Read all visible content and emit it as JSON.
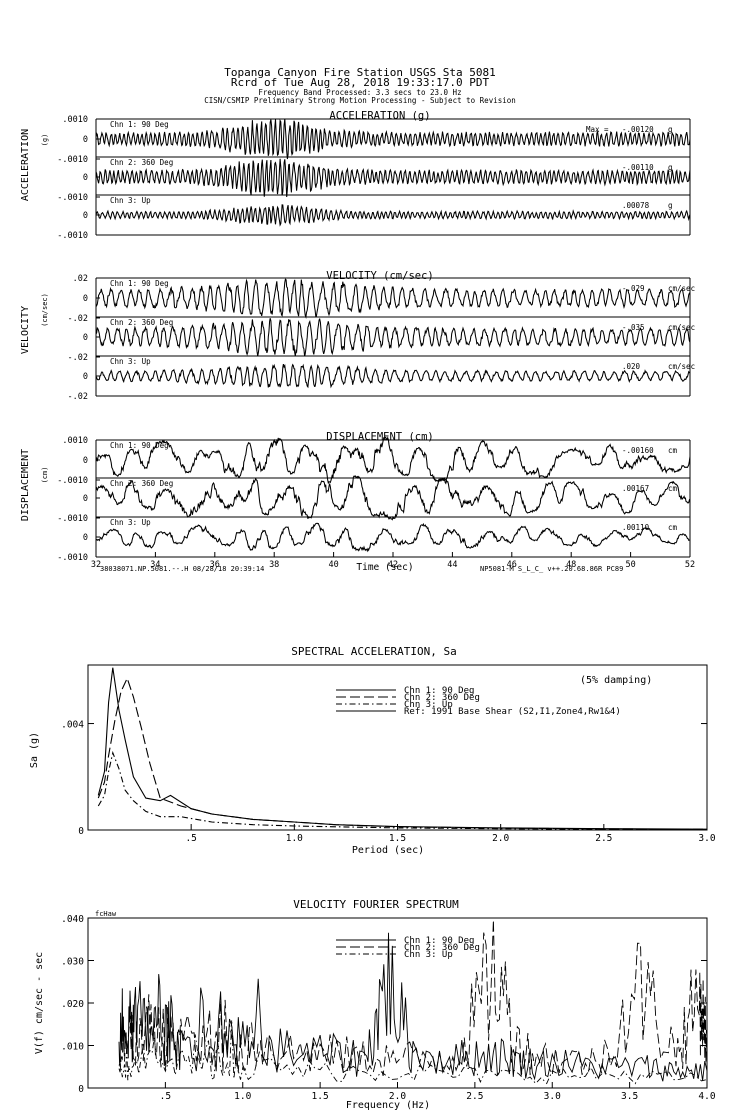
{
  "header": {
    "line1": "Topanga Canyon Fire Station     USGS Sta 5081",
    "line2": "Rcrd of Tue Aug 28, 2018 19:33:17.0 PDT",
    "line3": "Frequency Band Processed: 3.3 secs to 23.0 Hz",
    "line4": "CISN/CSMIP Preliminary Strong Motion Processing - Subject to Revision"
  },
  "footer": {
    "left": "38038071.NP.5081.--.H 08/28/18 20:39:14",
    "right": "NP5081-M  S_L_C_  v++.20.68.86R PC89"
  },
  "chart_data": [
    {
      "type": "line",
      "name": "acceleration",
      "title": "ACCELERATION (g)",
      "ylabel": "ACCELERATION",
      "yunit": "(g)",
      "ylim": [
        -0.001,
        0.001
      ],
      "yticks": [
        ".0010",
        "0",
        "-.0010"
      ],
      "xlim": [
        32,
        52
      ],
      "channels": [
        {
          "label": "Chn 1: 90 Deg",
          "max_prefix": "Max = ",
          "max_value": "-.00120",
          "unit": "g"
        },
        {
          "label": "Chn 2: 360 Deg",
          "max_value": "-.00110",
          "unit": "g"
        },
        {
          "label": "Chn 3: Up",
          "max_value": ".00078",
          "unit": "g"
        }
      ]
    },
    {
      "type": "line",
      "name": "velocity",
      "title": "VELOCITY (cm/sec)",
      "ylabel": "VELOCITY",
      "yunit": "(cm/sec)",
      "ylim": [
        -0.02,
        0.02
      ],
      "yticks": [
        ".02",
        "0",
        "-.02"
      ],
      "xlim": [
        32,
        52
      ],
      "channels": [
        {
          "label": "Chn 1: 90 Deg",
          "max_value": "-.029",
          "unit": "cm/sec"
        },
        {
          "label": "Chn 2: 360 Deg",
          "max_value": "-.035",
          "unit": "cm/sec"
        },
        {
          "label": "Chn 3: Up",
          "max_value": ".020",
          "unit": "cm/sec"
        }
      ]
    },
    {
      "type": "line",
      "name": "displacement",
      "title": "DISPLACEMENT (cm)",
      "ylabel": "DISPLACEMENT",
      "yunit": "(cm)",
      "ylim": [
        -0.001,
        0.001
      ],
      "yticks": [
        ".0010",
        "0",
        "-.0010"
      ],
      "xlim": [
        32,
        52
      ],
      "xlabel": "Time (sec)",
      "xticks": [
        "32",
        "34",
        "36",
        "38",
        "40",
        "42",
        "44",
        "46",
        "48",
        "50",
        "52"
      ],
      "channels": [
        {
          "label": "Chn 1: 90 Deg",
          "max_value": "-.00160",
          "unit": "cm"
        },
        {
          "label": "Chn 2: 360 Deg",
          "max_value": ".00167",
          "unit": "cm"
        },
        {
          "label": "Chn 3: Up",
          "max_value": ".00110",
          "unit": "cm"
        }
      ]
    },
    {
      "type": "line",
      "name": "spectral-acceleration",
      "title": "SPECTRAL ACCELERATION, Sa",
      "annotation": "(5% damping)",
      "xlabel": "Period (sec)",
      "ylabel": "Sa (g)",
      "xlim": [
        0,
        3.0
      ],
      "ylim": [
        0,
        0.0062
      ],
      "xticks": [
        ".5",
        "1.0",
        "1.5",
        "2.0",
        "2.5",
        "3.0"
      ],
      "yticks": [
        ".004",
        "0"
      ],
      "legend_position": "top-center",
      "series": [
        {
          "name": "Chn 1: 90 Deg",
          "dash": "solid",
          "x": [
            0.05,
            0.08,
            0.1,
            0.12,
            0.15,
            0.18,
            0.22,
            0.28,
            0.35,
            0.4,
            0.5,
            0.6,
            0.8,
            1.0,
            1.2,
            1.5,
            2.0,
            2.5,
            3.0
          ],
          "y": [
            0.0013,
            0.0022,
            0.0048,
            0.0061,
            0.0045,
            0.0034,
            0.002,
            0.0012,
            0.0011,
            0.0013,
            0.0008,
            0.0006,
            0.0004,
            0.0003,
            0.0002,
            0.00013,
            8e-05,
            5e-05,
            3e-05
          ]
        },
        {
          "name": "Chn 2: 360 Deg",
          "dash": "long",
          "x": [
            0.05,
            0.08,
            0.1,
            0.13,
            0.16,
            0.19,
            0.22,
            0.26,
            0.3,
            0.35,
            0.45,
            0.6,
            0.8,
            1.0,
            1.2,
            1.5,
            2.0,
            2.5,
            3.0
          ],
          "y": [
            0.0012,
            0.0018,
            0.0028,
            0.0041,
            0.0052,
            0.0057,
            0.005,
            0.0038,
            0.0025,
            0.0012,
            0.0009,
            0.0006,
            0.0004,
            0.0003,
            0.0002,
            0.00012,
            7e-05,
            4e-05,
            3e-05
          ]
        },
        {
          "name": "Chn 3: Up",
          "dash": "dashdot",
          "x": [
            0.05,
            0.08,
            0.1,
            0.12,
            0.15,
            0.18,
            0.22,
            0.28,
            0.35,
            0.45,
            0.6,
            0.8,
            1.0,
            1.5,
            2.0,
            2.5,
            3.0
          ],
          "y": [
            0.0009,
            0.0013,
            0.0022,
            0.0029,
            0.0023,
            0.0015,
            0.0011,
            0.0007,
            0.0005,
            0.0005,
            0.0003,
            0.0002,
            0.00015,
            8e-05,
            5e-05,
            3e-05,
            2e-05
          ]
        },
        {
          "name": "Ref: 1991 Base Shear (S2,I1,Zone4,Rw1&4)",
          "dash": "solid",
          "y": []
        }
      ]
    },
    {
      "type": "line",
      "name": "velocity-fourier-spectrum",
      "title": "VELOCITY FOURIER SPECTRUM",
      "corner_label": "fcHaw",
      "xlabel": "Frequency (Hz)",
      "ylabel": "V(f)  cm/sec - sec",
      "xlim": [
        0,
        4.0
      ],
      "ylim": [
        0,
        0.04
      ],
      "xticks": [
        ".5",
        "1.0",
        "1.5",
        "2.0",
        "2.5",
        "3.0",
        "3.5",
        "4.0"
      ],
      "yticks": [
        ".040",
        ".030",
        ".020",
        ".010",
        "0"
      ],
      "legend_position": "top-center",
      "series": [
        {
          "name": "Chn 1: 90 Deg",
          "dash": "solid",
          "x": [
            0.2,
            0.25,
            0.3,
            0.4,
            0.5,
            0.6,
            0.8,
            1.0,
            1.2,
            1.5,
            1.8,
            1.93,
            2.1,
            2.4,
            2.62,
            2.8,
            3.0,
            3.3,
            3.6,
            3.8,
            4.0
          ],
          "y": [
            0.008,
            0.012,
            0.013,
            0.014,
            0.012,
            0.011,
            0.01,
            0.01,
            0.009,
            0.008,
            0.007,
            0.026,
            0.008,
            0.007,
            0.008,
            0.006,
            0.006,
            0.005,
            0.005,
            0.004,
            0.004
          ]
        },
        {
          "name": "Chn 2: 360 Deg",
          "dash": "long",
          "x": [
            0.2,
            0.3,
            0.4,
            0.5,
            0.6,
            0.8,
            1.0,
            1.2,
            1.5,
            1.8,
            2.1,
            2.4,
            2.62,
            2.8,
            3.0,
            3.3,
            3.57,
            3.8,
            3.95,
            4.0
          ],
          "y": [
            0.007,
            0.011,
            0.012,
            0.012,
            0.011,
            0.01,
            0.009,
            0.009,
            0.008,
            0.007,
            0.007,
            0.008,
            0.028,
            0.009,
            0.007,
            0.006,
            0.024,
            0.008,
            0.022,
            0.012
          ]
        },
        {
          "name": "Chn 3: Up",
          "dash": "dashdot",
          "x": [
            0.2,
            0.3,
            0.5,
            0.8,
            1.0,
            1.5,
            2.0,
            2.5,
            3.0,
            3.5,
            4.0
          ],
          "y": [
            0.004,
            0.005,
            0.006,
            0.006,
            0.005,
            0.004,
            0.004,
            0.003,
            0.003,
            0.003,
            0.002
          ]
        }
      ]
    }
  ]
}
